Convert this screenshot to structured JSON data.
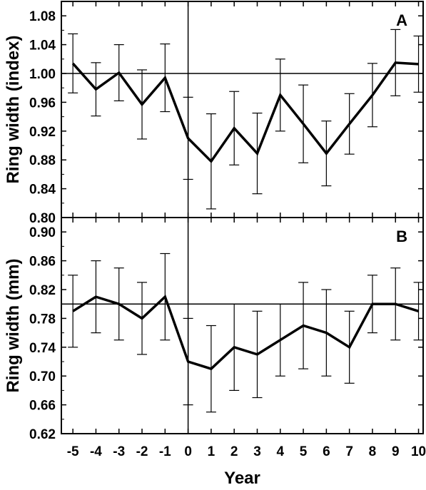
{
  "chart_data": [
    {
      "type": "line",
      "panel_label": "A",
      "ylabel": "Ring width (index)",
      "xlabel": "",
      "x": [
        -5,
        -4,
        -3,
        -2,
        -1,
        0,
        1,
        2,
        3,
        4,
        5,
        6,
        7,
        8,
        9,
        10
      ],
      "ylim": [
        0.8,
        1.1
      ],
      "yticks": [
        "0.80",
        "0.84",
        "0.88",
        "0.92",
        "0.96",
        "1.00",
        "1.04",
        "1.08"
      ],
      "series": [
        {
          "values": [
            1.014,
            0.978,
            1.001,
            0.957,
            0.994,
            0.91,
            0.878,
            0.924,
            0.889,
            0.97,
            0.93,
            0.889,
            0.93,
            0.97,
            1.015,
            1.013
          ],
          "error": [
            0.041,
            0.037,
            0.039,
            0.048,
            0.047,
            0.057,
            0.066,
            0.051,
            0.056,
            0.05,
            0.054,
            0.045,
            0.042,
            0.044,
            0.046,
            0.039
          ]
        }
      ],
      "reference_lines": {
        "y": 1.0,
        "x": 0
      },
      "grid": false
    },
    {
      "type": "line",
      "panel_label": "B",
      "ylabel": "Ring width (mm)",
      "xlabel": "Year",
      "x": [
        -5,
        -4,
        -3,
        -2,
        -1,
        0,
        1,
        2,
        3,
        4,
        5,
        6,
        7,
        8,
        9,
        10
      ],
      "xticks": [
        "-5",
        "-4",
        "-3",
        "-2",
        "-1",
        "0",
        "1",
        "2",
        "3",
        "4",
        "5",
        "6",
        "7",
        "8",
        "9",
        "10"
      ],
      "ylim": [
        0.62,
        0.92
      ],
      "yticks": [
        "0.62",
        "0.66",
        "0.70",
        "0.74",
        "0.78",
        "0.82",
        "0.86",
        "0.90"
      ],
      "series": [
        {
          "values": [
            0.79,
            0.81,
            0.8,
            0.78,
            0.81,
            0.72,
            0.71,
            0.74,
            0.73,
            0.75,
            0.77,
            0.76,
            0.74,
            0.8,
            0.8,
            0.79
          ],
          "error": [
            0.05,
            0.05,
            0.05,
            0.05,
            0.06,
            0.06,
            0.06,
            0.06,
            0.06,
            0.05,
            0.06,
            0.06,
            0.05,
            0.04,
            0.05,
            0.04
          ]
        }
      ],
      "reference_lines": {
        "y": 0.8,
        "x": 0
      },
      "grid": false
    }
  ]
}
